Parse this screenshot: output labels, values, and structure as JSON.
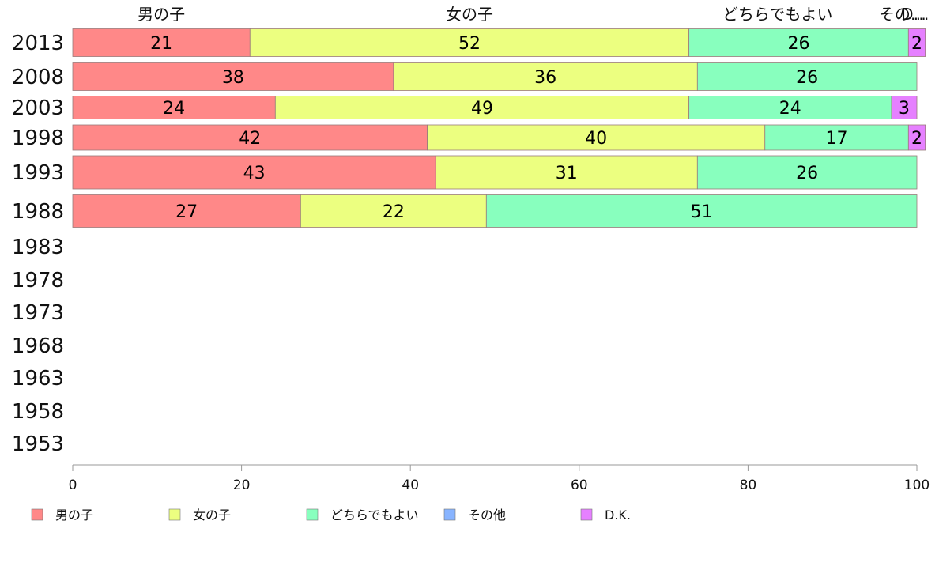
{
  "chart_data": {
    "type": "bar",
    "orientation": "horizontal",
    "stacked": true,
    "categories": [
      "2013",
      "2008",
      "2003",
      "1998",
      "1993",
      "1988",
      "1983",
      "1978",
      "1973",
      "1968",
      "1963",
      "1958",
      "1953"
    ],
    "series": [
      {
        "name": "男の子",
        "color": "#ff8888",
        "values": [
          21,
          38,
          24,
          42,
          43,
          27,
          null,
          null,
          null,
          null,
          null,
          null,
          null
        ]
      },
      {
        "name": "女の子",
        "color": "#ecff80",
        "values": [
          52,
          36,
          49,
          40,
          31,
          22,
          null,
          null,
          null,
          null,
          null,
          null,
          null
        ]
      },
      {
        "name": "どちらでもよい",
        "color": "#88ffbe",
        "values": [
          26,
          26,
          24,
          17,
          26,
          51,
          null,
          null,
          null,
          null,
          null,
          null,
          null
        ]
      },
      {
        "name": "その他",
        "color": "#88b4ff",
        "values": [
          0,
          0,
          0,
          0,
          0,
          0,
          null,
          null,
          null,
          null,
          null,
          null,
          null
        ]
      },
      {
        "name": "D.K.",
        "color": "#e680ff",
        "values": [
          2,
          0,
          3,
          2,
          0,
          0,
          null,
          null,
          null,
          null,
          null,
          null,
          null
        ]
      }
    ],
    "top_labels": [
      "男の子",
      "女の子",
      "どちらでもよい",
      "その…",
      "D…"
    ],
    "xlim": [
      0,
      100
    ],
    "xticks": [
      "0",
      "20",
      "40",
      "60",
      "80",
      "100"
    ],
    "legend_position": "bottom",
    "grid": false
  }
}
